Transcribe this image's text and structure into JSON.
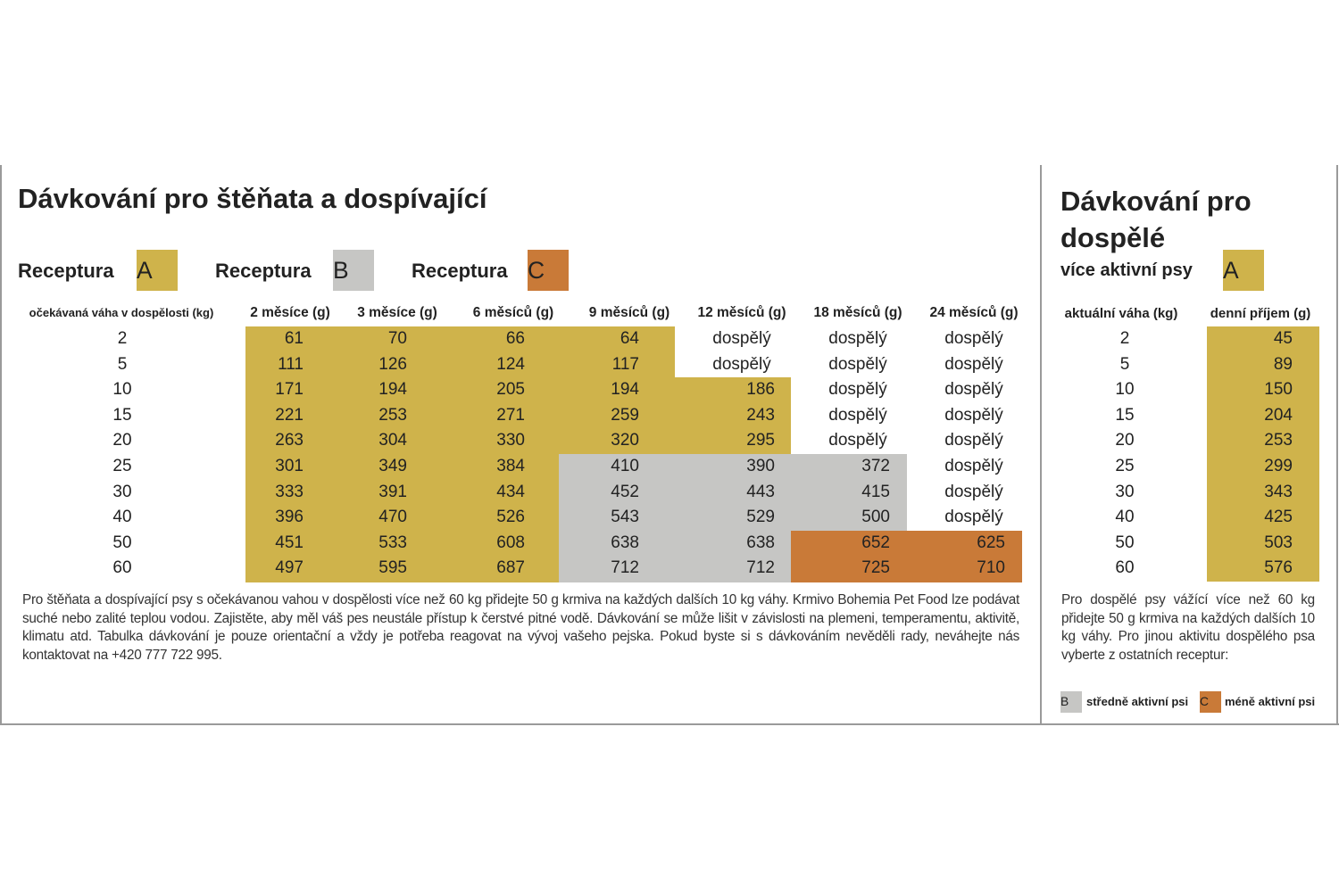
{
  "puppies": {
    "title": "Dávkování pro štěňata a dospívající",
    "recipes": [
      {
        "label": "Receptura",
        "letter": "A",
        "color": "#cfb34b"
      },
      {
        "label": "Receptura",
        "letter": "B",
        "color": "#c6c6c4"
      },
      {
        "label": "Receptura",
        "letter": "C",
        "color": "#c97a38"
      }
    ],
    "table": {
      "header": [
        "očekávaná váha v dospělosti (kg)",
        "2 měsíce (g)",
        "3 měsíce (g)",
        "6 měsíců (g)",
        "9 měsíců (g)",
        "12 měsíců (g)",
        "18 měsíců (g)",
        "24 měsíců (g)"
      ],
      "rows": [
        [
          2,
          61,
          70,
          66,
          64,
          "dospělý",
          "dospělý",
          "dospělý"
        ],
        [
          5,
          111,
          126,
          124,
          117,
          "dospělý",
          "dospělý",
          "dospělý"
        ],
        [
          10,
          171,
          194,
          205,
          194,
          186,
          "dospělý",
          "dospělý"
        ],
        [
          15,
          221,
          253,
          271,
          259,
          243,
          "dospělý",
          "dospělý"
        ],
        [
          20,
          263,
          304,
          330,
          320,
          295,
          "dospělý",
          "dospělý"
        ],
        [
          25,
          301,
          349,
          384,
          410,
          390,
          372,
          "dospělý"
        ],
        [
          30,
          333,
          391,
          434,
          452,
          443,
          415,
          "dospělý"
        ],
        [
          40,
          396,
          470,
          526,
          543,
          529,
          500,
          "dospělý"
        ],
        [
          50,
          451,
          533,
          608,
          638,
          638,
          652,
          625
        ],
        [
          60,
          497,
          595,
          687,
          712,
          712,
          725,
          710
        ]
      ],
      "fills": [
        [
          "A",
          "A",
          "A",
          "A",
          null,
          null,
          null
        ],
        [
          "A",
          "A",
          "A",
          "A",
          null,
          null,
          null
        ],
        [
          "A",
          "A",
          "A",
          "A",
          "A",
          null,
          null
        ],
        [
          "A",
          "A",
          "A",
          "A",
          "A",
          null,
          null
        ],
        [
          "A",
          "A",
          "A",
          "A",
          "A",
          null,
          null
        ],
        [
          "A",
          "A",
          "A",
          "B",
          "B",
          "B",
          null
        ],
        [
          "A",
          "A",
          "A",
          "B",
          "B",
          "B",
          null
        ],
        [
          "A",
          "A",
          "A",
          "B",
          "B",
          "B",
          null
        ],
        [
          "A",
          "A",
          "A",
          "B",
          "B",
          "C",
          "C"
        ],
        [
          "A",
          "A",
          "A",
          "B",
          "B",
          "C",
          "C"
        ]
      ]
    },
    "note": "Pro štěňata a dospívající psy s očekávanou vahou v dospělosti více než 60 kg přidejte 50 g krmiva na každých dalších 10 kg váhy. Krmivo Bohemia Pet Food lze podávat suché nebo zalité teplou vodou. Zajistěte, aby měl váš pes neustále přístup k čerstvé pitné vodě. Dávkování se může lišit v závislosti na plemeni, temperamentu, aktivitě, klimatu atd. Tabulka dávkování je pouze orientační a vždy je potřeba reagovat na vývoj vašeho pejska. Pokud byste si s dávkováním nevěděli rady, neváhejte nás kontaktovat na +420 777 722 995."
  },
  "adults": {
    "title": "Dávkování pro dospělé",
    "subtitle": "více aktivní psy",
    "recipe": "A",
    "table": {
      "header": [
        "aktuální váha (kg)",
        "denní příjem (g)"
      ],
      "rows": [
        [
          2,
          45
        ],
        [
          5,
          89
        ],
        [
          10,
          150
        ],
        [
          15,
          204
        ],
        [
          20,
          253
        ],
        [
          25,
          299
        ],
        [
          30,
          343
        ],
        [
          40,
          425
        ],
        [
          50,
          503
        ],
        [
          60,
          576
        ]
      ]
    },
    "note": "Pro dospělé psy vážící více než 60 kg přidejte 50 g krmiva na každých dalších 10 kg váhy. Pro jinou aktivitu dospělého psa vyberte z ostatních receptur:",
    "legend": [
      {
        "letter": "B",
        "label": "středně aktivní psi"
      },
      {
        "letter": "C",
        "label": "méně aktivní psi"
      }
    ]
  }
}
